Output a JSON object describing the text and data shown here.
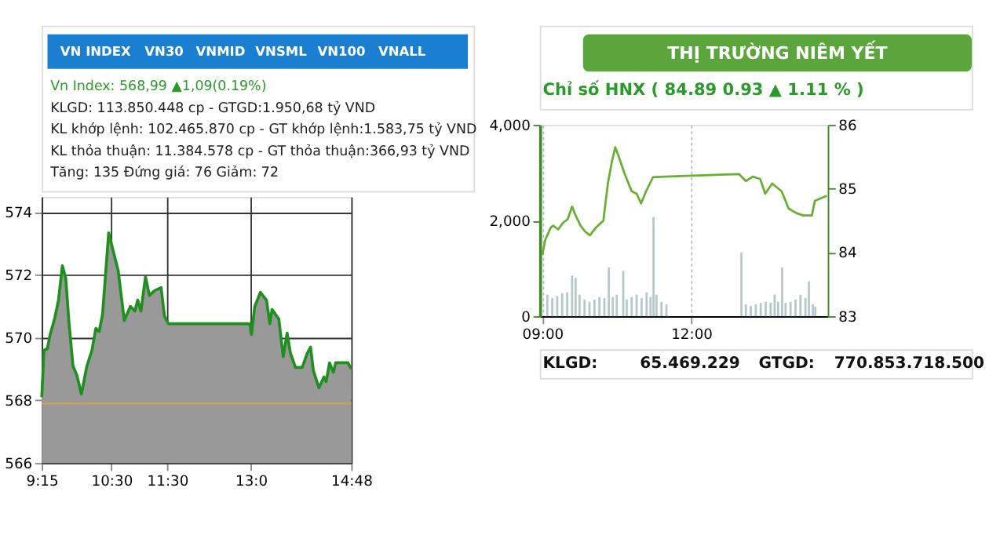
{
  "chart_data": [
    {
      "type": "area",
      "title": "Vn Index: 568,99 ▲1,09(0.19%)",
      "annotations": [
        "VN INDEX",
        "VN30",
        "VNMID",
        "VNSML",
        "VN100",
        "VNALL",
        "KLGD: 113.850.448 cp - GTGD:1.950,68 tỷ VND",
        "KL khớp lệnh: 102.465.870 cp - GT khớp lệnh:1.583,75 tỷ VND",
        "KL thỏa thuận: 11.384.578 cp - GT thỏa thuận:366,93 tỷ VND",
        "Tăng: 135 Đứng giá: 76 Giảm: 72"
      ],
      "x": [
        9.25,
        9.29,
        9.35,
        9.4,
        9.48,
        9.55,
        9.62,
        9.68,
        9.74,
        9.81,
        9.88,
        9.96,
        10.06,
        10.15,
        10.22,
        10.28,
        10.34,
        10.45,
        10.52,
        10.62,
        10.73,
        10.84,
        10.92,
        10.97,
        11.03,
        11.11,
        11.18,
        11.27,
        11.39,
        11.45,
        11.52,
        12.98,
        13.01,
        13.07,
        13.17,
        13.28,
        13.34,
        13.38,
        13.5,
        13.58,
        13.65,
        13.71,
        13.8,
        13.92,
        14.01,
        14.07,
        14.12,
        14.22,
        14.31,
        14.35,
        14.41,
        14.48,
        14.52,
        14.74,
        14.8
      ],
      "series": [
        {
          "color": "#1f8f1f",
          "values": [
            568.1,
            569.6,
            569.65,
            570.1,
            570.6,
            571.2,
            572.3,
            571.9,
            570.45,
            569.1,
            568.8,
            568.2,
            569.1,
            569.6,
            570.3,
            570.2,
            570.75,
            573.35,
            572.85,
            572.15,
            570.55,
            571.0,
            570.85,
            571.2,
            570.85,
            571.95,
            571.35,
            571.5,
            571.6,
            570.7,
            570.45,
            570.45,
            570.1,
            571.0,
            571.45,
            571.2,
            570.45,
            570.9,
            570.6,
            569.4,
            570.15,
            569.5,
            569.05,
            569.05,
            569.5,
            569.7,
            568.95,
            568.4,
            568.75,
            568.6,
            569.2,
            568.9,
            569.2,
            569.2,
            569.0
          ]
        }
      ],
      "xlim": [
        9.25,
        14.8
      ],
      "xticks": [
        {
          "value": 9.25,
          "label": "9:15"
        },
        {
          "value": 10.5,
          "label": "10:30"
        },
        {
          "value": 11.5,
          "label": "11:30"
        },
        {
          "value": 13.0,
          "label": "13:0"
        },
        {
          "value": 14.8,
          "label": "14:48"
        }
      ],
      "ylim": [
        566,
        574.5
      ],
      "yticks": [
        566,
        568,
        570,
        572,
        574
      ],
      "ref_lines": [
        {
          "axis": "y",
          "value": 567.9,
          "color": "#c8a060"
        }
      ],
      "grid": true
    },
    {
      "type": "line",
      "title": "THỊ TRƯỜNG NIÊM YẾT",
      "subtitle": "Chỉ số HNX ( 84.89  0.93 ▲  1.11 % )",
      "annotations": [
        "KLGD:",
        "65.469.229",
        "GTGD:",
        "770.853.718.500"
      ],
      "series": [
        {
          "type": "bar",
          "color": "#b4c8cc",
          "x": [
            9.1,
            9.2,
            9.3,
            9.4,
            9.5,
            9.6,
            9.67,
            9.75,
            9.85,
            9.95,
            10.05,
            10.15,
            10.25,
            10.34,
            10.42,
            10.5,
            10.63,
            10.7,
            10.8,
            10.9,
            11.0,
            11.1,
            11.18,
            11.24,
            11.3,
            11.4,
            11.5,
            13.01,
            13.1,
            13.2,
            13.3,
            13.4,
            13.5,
            13.6,
            13.68,
            13.75,
            13.83,
            13.9,
            14.0,
            14.1,
            14.2,
            14.3,
            14.37,
            14.45,
            14.5
          ],
          "values": [
            450,
            380,
            420,
            480,
            500,
            850,
            800,
            450,
            350,
            300,
            350,
            400,
            380,
            1020,
            400,
            450,
            950,
            350,
            400,
            450,
            380,
            500,
            400,
            2070,
            450,
            300,
            250,
            1330,
            250,
            220,
            250,
            280,
            300,
            280,
            450,
            300,
            1020,
            280,
            300,
            350,
            450,
            380,
            730,
            250,
            200
          ]
        },
        {
          "type": "line",
          "axis": "y2",
          "color": "#66b032",
          "x": [
            9.0,
            9.06,
            9.17,
            9.22,
            9.32,
            9.41,
            9.51,
            9.6,
            9.67,
            9.77,
            9.86,
            9.96,
            10.08,
            10.23,
            10.32,
            10.4,
            10.47,
            10.54,
            10.66,
            10.8,
            10.9,
            10.99,
            11.09,
            11.23,
            11.47,
            12.96,
            13.1,
            13.24,
            13.39,
            13.49,
            13.63,
            13.82,
            13.96,
            14.11,
            14.25,
            14.43,
            14.49,
            14.73
          ],
          "values": [
            83.96,
            84.2,
            84.39,
            84.42,
            84.36,
            84.46,
            84.52,
            84.72,
            84.58,
            84.42,
            84.33,
            84.27,
            84.39,
            84.5,
            85.08,
            85.42,
            85.65,
            85.5,
            85.23,
            84.96,
            84.92,
            84.77,
            84.96,
            85.18,
            85.19,
            85.23,
            85.12,
            85.19,
            85.15,
            84.92,
            85.08,
            84.96,
            84.69,
            84.62,
            84.58,
            84.58,
            84.81,
            84.89
          ]
        }
      ],
      "xlim": [
        8.95,
        14.75
      ],
      "xticks": [
        {
          "value": 9,
          "label": "09:00"
        },
        {
          "value": 12,
          "label": "12:00"
        }
      ],
      "ylim": [
        0,
        4000
      ],
      "yticks": [
        {
          "value": 0,
          "label": "0"
        },
        {
          "value": 2000,
          "label": "2,000"
        },
        {
          "value": 4000,
          "label": "4,000"
        }
      ],
      "y2lim": [
        83,
        86
      ],
      "y2ticks": [
        83,
        84,
        85,
        86
      ],
      "grid": "x"
    }
  ]
}
